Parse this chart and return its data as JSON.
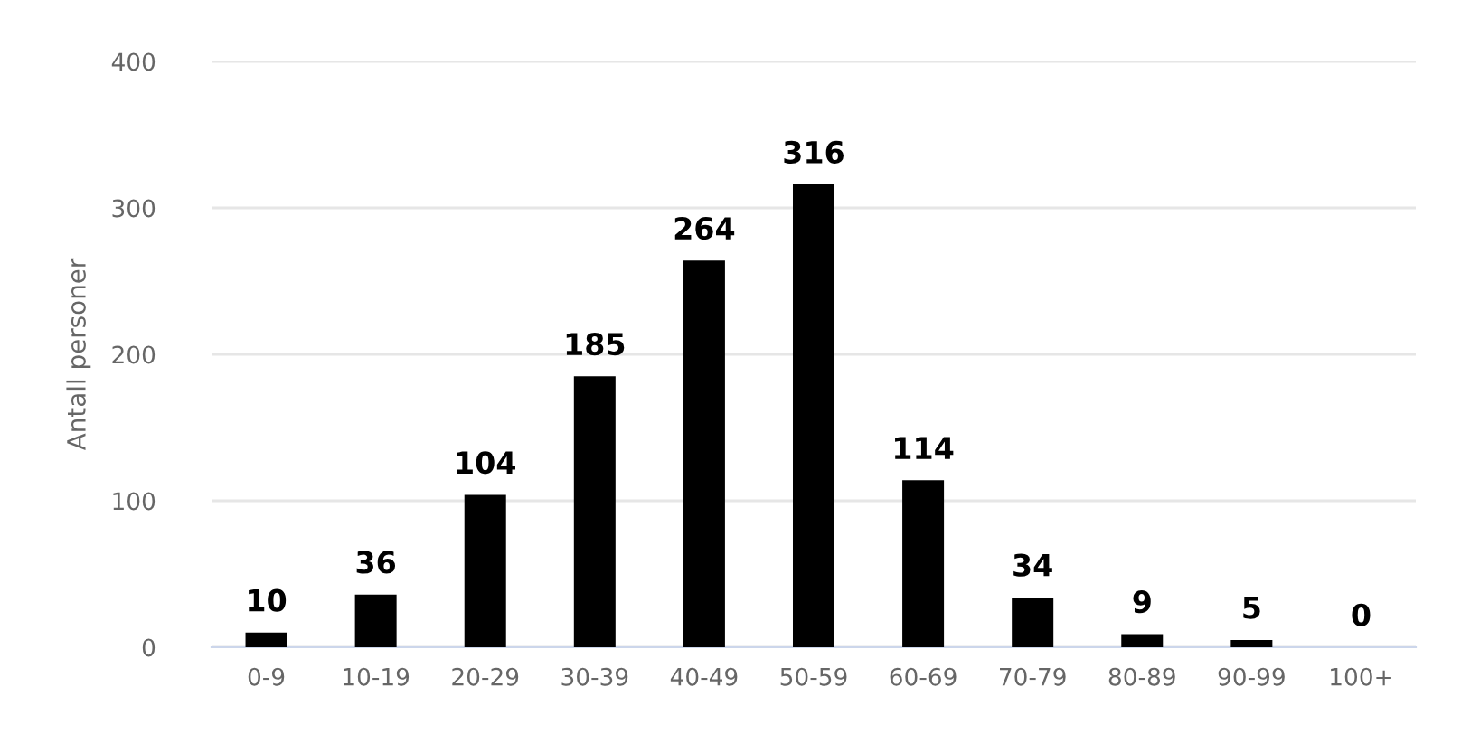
{
  "chart_data": {
    "type": "bar",
    "ylabel": "Antall personer",
    "categories": [
      "0-9",
      "10-19",
      "20-29",
      "30-39",
      "40-49",
      "50-59",
      "60-69",
      "70-79",
      "80-89",
      "90-99",
      "100+"
    ],
    "values": [
      10,
      36,
      104,
      185,
      264,
      316,
      114,
      34,
      9,
      5,
      0
    ],
    "color": "#000000",
    "ylim": [
      0,
      400
    ],
    "yticks": [
      0,
      100,
      200,
      300,
      400
    ],
    "grid": "y",
    "data_labels": true
  }
}
